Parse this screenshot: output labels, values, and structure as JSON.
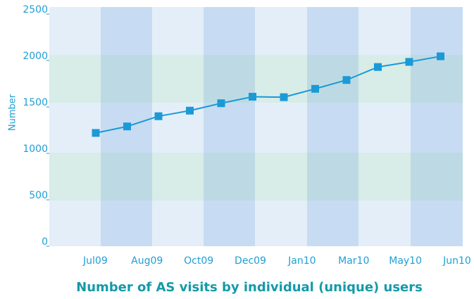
{
  "chart_data": {
    "type": "line",
    "title": "Number of AS visits by individual (unique) users",
    "y_label": "Number",
    "x_labels": [
      "Jul09",
      "Aug09",
      "Oct09",
      "Dec09",
      "Jan10",
      "Mar10",
      "May10",
      "Jun10"
    ],
    "series": [
      {
        "name": null,
        "color": "#1a9ad6",
        "values": [
          1220,
          1290,
          1400,
          1460,
          1540,
          1610,
          1605,
          1695,
          1790,
          1930,
          1985,
          2045
        ]
      }
    ],
    "ylim": [
      0,
      2500
    ],
    "yticks": [
      0,
      500,
      1000,
      1500,
      2000,
      2500
    ]
  }
}
